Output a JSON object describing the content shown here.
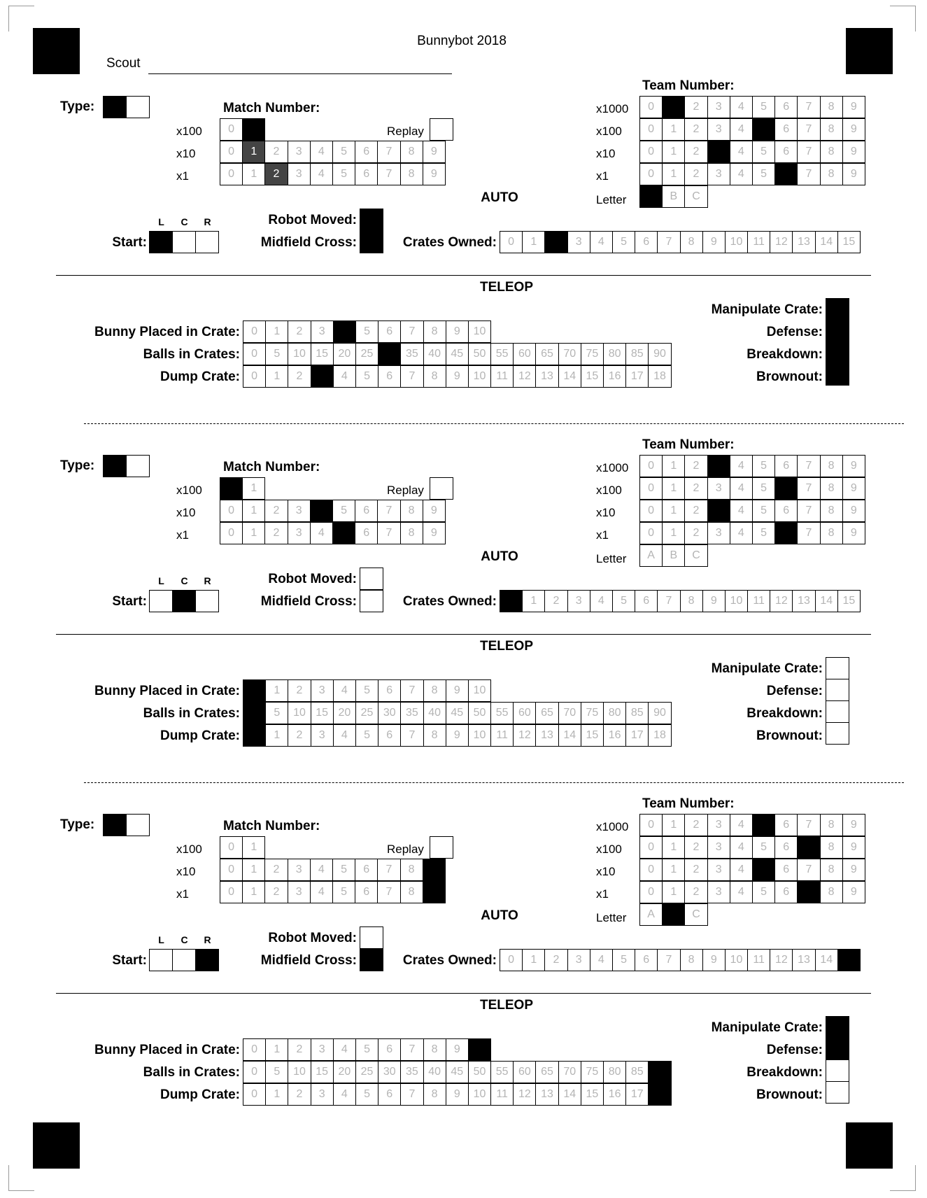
{
  "title": "Bunnybot 2018",
  "scout_label": "Scout",
  "labels": {
    "type": "Type:",
    "match_number": "Match Number:",
    "team_number": "Team Number:",
    "replay": "Replay",
    "auto": "AUTO",
    "teleop": "TELEOP",
    "letter": "Letter",
    "start": "Start:",
    "l": "L",
    "c": "C",
    "r": "R",
    "robot_moved": "Robot Moved:",
    "midfield_cross": "Midfield Cross:",
    "crates_owned": "Crates Owned:",
    "bunny_placed": "Bunny Placed in Crate:",
    "balls_in_crates": "Balls in Crates:",
    "dump_crate": "Dump Crate:",
    "manipulate_crate": "Manipulate Crate:",
    "defense": "Defense:",
    "breakdown": "Breakdown:",
    "brownout": "Brownout:",
    "x1000": "x1000",
    "x100": "x100",
    "x10": "x10",
    "x1": "x1"
  },
  "scales": {
    "digits": [
      "0",
      "1",
      "2",
      "3",
      "4",
      "5",
      "6",
      "7",
      "8",
      "9"
    ],
    "x100": [
      "0",
      "1"
    ],
    "letters": [
      "A",
      "B",
      "C"
    ],
    "crates": [
      "0",
      "1",
      "2",
      "3",
      "4",
      "5",
      "6",
      "7",
      "8",
      "9",
      "10",
      "11",
      "12",
      "13",
      "14",
      "15"
    ],
    "bunny": [
      "0",
      "1",
      "2",
      "3",
      "4",
      "5",
      "6",
      "7",
      "8",
      "9",
      "10"
    ],
    "balls": [
      "0",
      "5",
      "10",
      "15",
      "20",
      "25",
      "30",
      "35",
      "40",
      "45",
      "50",
      "55",
      "60",
      "65",
      "70",
      "75",
      "80",
      "85",
      "90"
    ],
    "dump": [
      "0",
      "1",
      "2",
      "3",
      "4",
      "5",
      "6",
      "7",
      "8",
      "9",
      "10",
      "11",
      "12",
      "13",
      "14",
      "15",
      "16",
      "17",
      "18"
    ]
  },
  "blocks": [
    {
      "type": [
        1,
        0
      ],
      "match": {
        "x100": 1,
        "x10": 1,
        "x1": 2,
        "x10_style": "dark",
        "x1_style": "dark",
        "replay": false
      },
      "team": {
        "x1000": 1,
        "x100": 5,
        "x10": 3,
        "x1": 6,
        "letter": 0
      },
      "start": 0,
      "robot_moved": true,
      "midfield_cross": true,
      "crates_owned": 2,
      "bunny": 4,
      "balls": 6,
      "dump": 3,
      "manipulate": true,
      "defense": true,
      "breakdown": true,
      "brownout": true
    },
    {
      "type": [
        1,
        0
      ],
      "match": {
        "x100": 0,
        "x10": 4,
        "x1": 5,
        "x10_style": "fill",
        "x1_style": "fill",
        "replay": false
      },
      "team": {
        "x1000": 3,
        "x100": 6,
        "x10": 3,
        "x1": 6,
        "letter": -1
      },
      "start": 1,
      "robot_moved": false,
      "midfield_cross": false,
      "crates_owned": 0,
      "bunny": 0,
      "balls": 0,
      "dump": 0,
      "manipulate": false,
      "defense": false,
      "breakdown": false,
      "brownout": false
    },
    {
      "type": [
        1,
        0
      ],
      "match": {
        "x100": -1,
        "x10": 9,
        "x1": 9,
        "x10_style": "fill",
        "x1_style": "fill",
        "replay": false
      },
      "team": {
        "x1000": 5,
        "x100": 7,
        "x10": 5,
        "x1": 7,
        "letter": 1
      },
      "start": 2,
      "robot_moved": false,
      "midfield_cross": true,
      "crates_owned": 15,
      "bunny": 10,
      "balls": 18,
      "dump": 18,
      "manipulate": true,
      "defense": true,
      "breakdown": false,
      "brownout": false
    }
  ]
}
